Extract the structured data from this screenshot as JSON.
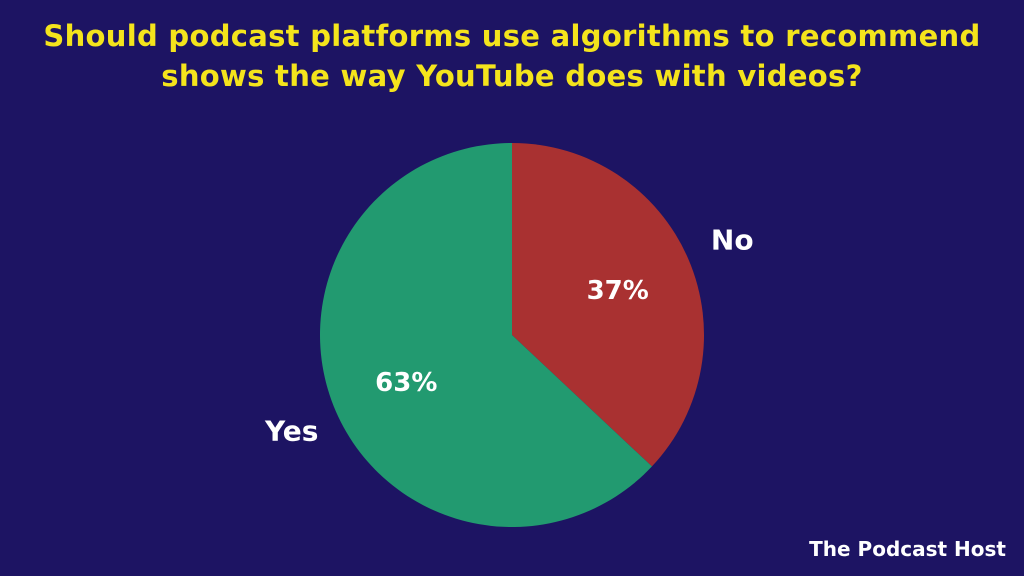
{
  "chart_data": {
    "type": "pie",
    "title_line1": "Should podcast platforms use algorithms to recommend",
    "title_line2": "shows the way YouTube does with videos?",
    "slices": [
      {
        "label": "No",
        "value": 37,
        "value_label": "37%",
        "color": "#a93131"
      },
      {
        "label": "Yes",
        "value": 63,
        "value_label": "63%",
        "color": "#229a70"
      }
    ],
    "start_angle": "12 o'clock",
    "direction": "clockwise"
  },
  "background_color": "#1d1463",
  "logo": "The Podcast Host"
}
